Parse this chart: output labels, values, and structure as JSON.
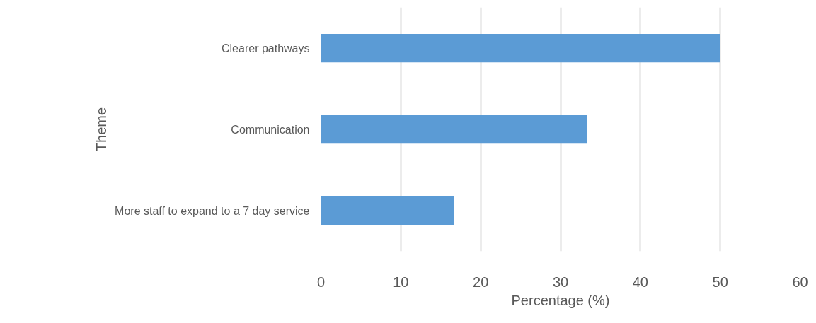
{
  "chart_data": {
    "type": "bar",
    "orientation": "horizontal",
    "categories": [
      "Clearer pathways",
      "Communication",
      "More staff to expand to a 7 day service"
    ],
    "values": [
      50,
      33.3,
      16.7
    ],
    "color": "#5b9bd5",
    "xlim": [
      0,
      60
    ],
    "xticks": [
      0,
      10,
      20,
      30,
      40,
      50,
      60
    ],
    "xlabel": "Percentage (%)",
    "ylabel": "Theme",
    "grid": "x"
  }
}
